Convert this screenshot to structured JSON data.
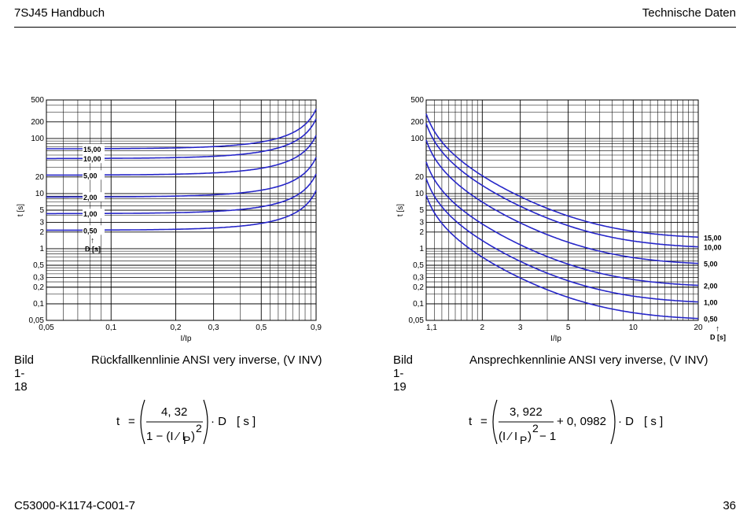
{
  "header": {
    "title_left": "7SJ45 Handbuch",
    "title_right": "Technische Daten"
  },
  "footer": {
    "doc_number": "C53000-K1174-C001-7",
    "page_number": "36"
  },
  "chart_data": [
    {
      "type": "line",
      "title": "Rückfallkennlinie ANSI very inverse, (V INV)",
      "xlabel": "I/Ip",
      "ylabel": "t [s]",
      "xscale": "log",
      "yscale": "log",
      "xlim": [
        0.05,
        0.9
      ],
      "ylim": [
        0.05,
        500
      ],
      "x_ticks": [
        0.05,
        0.1,
        0.2,
        0.3,
        0.5,
        0.9
      ],
      "x_tick_labels": [
        "0,05",
        "0,1",
        "0,2",
        "0,3",
        "0,5",
        "0,9"
      ],
      "y_ticks": [
        0.05,
        0.1,
        0.2,
        0.3,
        0.5,
        1,
        2,
        3,
        5,
        10,
        20,
        100,
        200,
        500
      ],
      "y_tick_labels": [
        "0,05",
        "0,1",
        "0,2",
        "0,3",
        "0,5",
        "1",
        "2",
        "3",
        "5",
        "10",
        "20",
        "100",
        "200",
        "500"
      ],
      "grid": true,
      "formula": {
        "numerator_coeff": 4.32
      },
      "param_label": "D [s]",
      "series": [
        {
          "name": "15,00",
          "D": 15.0
        },
        {
          "name": "10,00",
          "D": 10.0
        },
        {
          "name": "5,00",
          "D": 5.0
        },
        {
          "name": "2,00",
          "D": 2.0
        },
        {
          "name": "1,00",
          "D": 1.0
        },
        {
          "name": "0,50",
          "D": 0.5
        }
      ],
      "line_color": "#2626c8"
    },
    {
      "type": "line",
      "title": "Ansprechkennlinie ANSI very inverse, (V INV)",
      "xlabel": "I/Ip",
      "ylabel": "t [s]",
      "xscale": "log",
      "yscale": "log",
      "xlim": [
        1.1,
        20
      ],
      "ylim": [
        0.05,
        500
      ],
      "x_ticks": [
        1.1,
        2,
        3,
        5,
        10,
        20
      ],
      "x_tick_labels": [
        "1,1",
        "2",
        "3",
        "5",
        "10",
        "20"
      ],
      "y_ticks": [
        0.05,
        0.1,
        0.2,
        0.3,
        0.5,
        1,
        2,
        3,
        5,
        10,
        20,
        100,
        200,
        500
      ],
      "y_tick_labels": [
        "0,05",
        "0,1",
        "0,2",
        "0,3",
        "0,5",
        "1",
        "2",
        "3",
        "5",
        "10",
        "20",
        "100",
        "200",
        "500"
      ],
      "grid": true,
      "formula": {
        "numerator_coeff": 3.922,
        "constant": 0.0982
      },
      "param_label": "D [s]",
      "series": [
        {
          "name": "15,00",
          "D": 15.0
        },
        {
          "name": "10,00",
          "D": 10.0
        },
        {
          "name": "5,00",
          "D": 5.0
        },
        {
          "name": "2,00",
          "D": 2.0
        },
        {
          "name": "1,00",
          "D": 1.0
        },
        {
          "name": "0,50",
          "D": 0.5
        }
      ],
      "line_color": "#2626c8"
    }
  ],
  "captions": [
    {
      "number": "Bild 1-18",
      "text": "Rückfallkennlinie ANSI very inverse, (V INV)"
    },
    {
      "number": "Bild 1-19",
      "text": "Ansprechkennlinie ANSI very inverse, (V INV)"
    }
  ],
  "formulas": [
    {
      "lhs": "t",
      "eq": "=",
      "numerator": "4, 32",
      "denominator": "1 − (I ⁄ I",
      "sub": "P",
      "sup": "2",
      "tail": "· D",
      "unit": "[ s ]"
    },
    {
      "lhs": "t",
      "eq": "=",
      "numerator": "3, 922",
      "denominator": "(I ⁄ I",
      "sub": "P",
      "sup": "2",
      "minus_one": "− 1",
      "plus": "+ 0, 0982",
      "tail": "· D",
      "unit": "[ s ]"
    }
  ]
}
